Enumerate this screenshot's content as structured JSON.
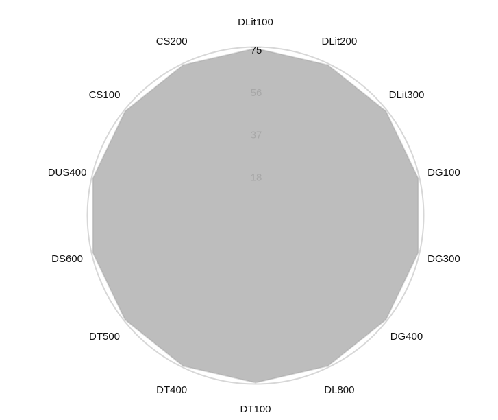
{
  "chart_data": {
    "type": "radar",
    "categories": [
      "DLit100",
      "DLit200",
      "DLit300",
      "DG100",
      "DG300",
      "DG400",
      "DL800",
      "DT100",
      "DT400",
      "DT500",
      "DS600",
      "DUS400",
      "CS100",
      "CS200"
    ],
    "tick_labels": [
      "18",
      "37",
      "56",
      "75"
    ],
    "ticks": [
      18,
      37,
      56,
      75
    ],
    "max": 75,
    "series": [
      {
        "values": [
          74.7,
          74.7,
          74.7,
          74.7,
          74.7,
          74.7,
          74.7,
          74.7,
          74.7,
          74.7,
          74.7,
          74.7,
          74.7,
          74.7
        ]
      }
    ],
    "colors": {
      "fill": "#bdbdbd",
      "grid": "#cfcfcf",
      "outer": "#d7d7d7",
      "text": "#111111",
      "tick": "#a7a7a7"
    }
  }
}
